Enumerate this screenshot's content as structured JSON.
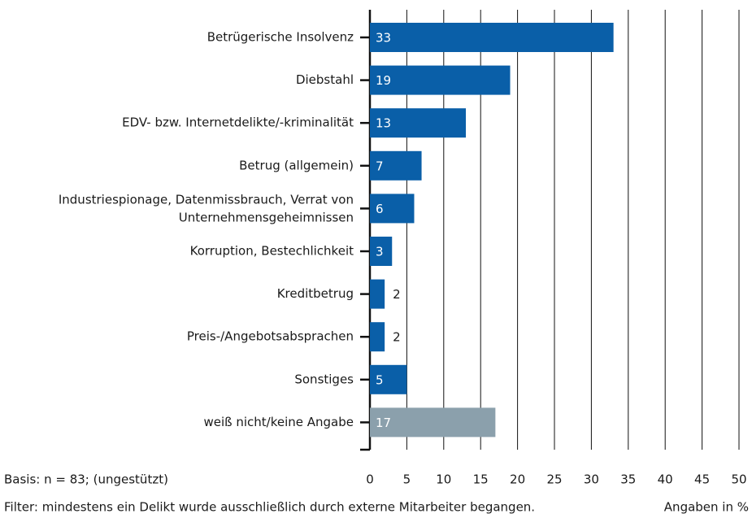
{
  "chart_data": {
    "type": "bar",
    "orientation": "horizontal",
    "categories": [
      "Betrügerische Insolvenz",
      "Diebstahl",
      "EDV- bzw. Internetdelikte/-kriminalität",
      "Betrug (allgemein)",
      "Industriespionage, Datenmissbrauch, Verrat von\nUnternehmensgeheimnissen",
      "Korruption, Bestechlichkeit",
      "Kreditbetrug",
      "Preis-/Angebotsabsprachen",
      "Sonstiges",
      "weiß nicht/keine Angabe"
    ],
    "values": [
      33,
      19,
      13,
      7,
      6,
      3,
      2,
      2,
      5,
      17
    ],
    "colors": [
      "#0a5fa8",
      "#0a5fa8",
      "#0a5fa8",
      "#0a5fa8",
      "#0a5fa8",
      "#0a5fa8",
      "#0a5fa8",
      "#0a5fa8",
      "#0a5fa8",
      "#8ba0ac"
    ],
    "xlim": [
      0,
      50
    ],
    "xticks": [
      0,
      5,
      10,
      15,
      20,
      25,
      30,
      35,
      40,
      45,
      50
    ],
    "grid": true,
    "notes": [
      "Basis: n = 83; (ungestützt)",
      "Filter: mindestens ein Delikt wurde ausschließlich durch externe Mitarbeiter begangen."
    ],
    "unit_label": "Angaben in %"
  }
}
